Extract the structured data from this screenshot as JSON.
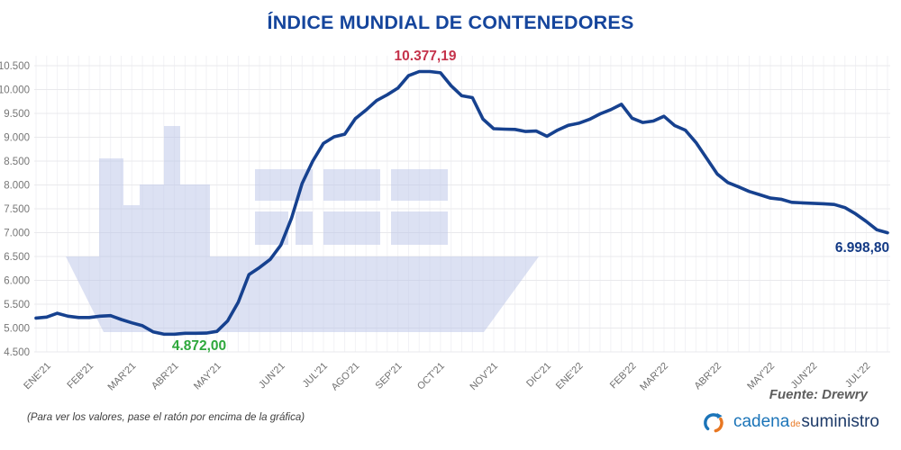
{
  "title": "ÍNDICE MUNDIAL DE CONTENEDORES",
  "annotations": {
    "max": "10.377,19",
    "min": "4.872,00",
    "last": "6.998,80"
  },
  "footer": {
    "note": "(Para ver los valores, pase el ratón por encima de la gráfica)",
    "source": "Fuente: Drewry"
  },
  "logo": {
    "icon": "sync-arcs-icon",
    "word1": "cadena",
    "word2": "de",
    "word3": "suministro"
  },
  "colors": {
    "line": "#16418f",
    "title": "#15459c",
    "max_label": "#c5334b",
    "min_label": "#2ea83c",
    "last_label": "#133a85",
    "axis_text": "#757575",
    "grid_h": "#e9e9ec",
    "grid_v": "#f2f2f5",
    "watermark": "#dbe0f3",
    "background": "#ffffff",
    "logo_blue": "#1b74b8",
    "logo_orange": "#e87722",
    "logo_navy": "#1d3a68"
  },
  "chart_data": {
    "type": "line",
    "title": "ÍNDICE MUNDIAL DE CONTENEDORES",
    "x_unit": "week",
    "ylim": [
      4500,
      10500
    ],
    "ytick_step": 500,
    "ytick_labels": [
      "4.500",
      "5.000",
      "5.500",
      "6.000",
      "6.500",
      "7.000",
      "7.500",
      "8.000",
      "8.500",
      "9.000",
      "9.500",
      "10.000",
      "10.500"
    ],
    "tick_labels": [
      "ENE'21",
      "FEB'21",
      "MAR'21",
      "ABR'21",
      "MAY'21",
      "JUN'21",
      "JUL'21",
      "AGO'21",
      "SEP'21",
      "OCT'21",
      "NOV'21",
      "DIC'21",
      "ENE'22",
      "FEB'22",
      "MAR'22",
      "ABR'22",
      "MAY'22",
      "JUN'22",
      "JUL'22"
    ],
    "tick_indices": [
      1,
      5,
      9,
      13,
      17,
      23,
      27,
      30,
      34,
      38,
      43,
      48,
      51,
      56,
      59,
      64,
      69,
      73,
      78
    ],
    "values": [
      5210,
      5230,
      5310,
      5250,
      5220,
      5220,
      5250,
      5260,
      5180,
      5110,
      5050,
      4920,
      4872,
      4872,
      4890,
      4890,
      4895,
      4930,
      5150,
      5540,
      6120,
      6270,
      6440,
      6740,
      7300,
      8030,
      8500,
      8870,
      9010,
      9065,
      9390,
      9570,
      9770,
      9890,
      10030,
      10290,
      10377.19,
      10377.19,
      10350,
      10080,
      9870,
      9830,
      9380,
      9180,
      9170,
      9165,
      9120,
      9130,
      9020,
      9150,
      9250,
      9295,
      9375,
      9490,
      9580,
      9690,
      9400,
      9310,
      9340,
      9440,
      9245,
      9150,
      8890,
      8560,
      8230,
      8050,
      7960,
      7865,
      7795,
      7725,
      7700,
      7635,
      7625,
      7615,
      7605,
      7590,
      7525,
      7395,
      7235,
      7060,
      6998.8
    ],
    "min_point": {
      "index": 13,
      "value": 4872.0,
      "label": "4.872,00"
    },
    "max_point": {
      "index": 36,
      "value": 10377.19,
      "label": "10.377,19"
    },
    "last_point": {
      "index": 80,
      "value": 6998.8,
      "label": "6.998,80"
    },
    "grid": true,
    "legend": false
  }
}
